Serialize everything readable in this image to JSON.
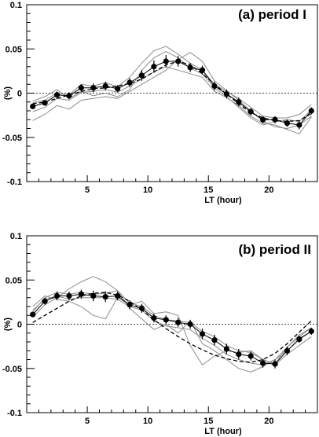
{
  "chart_data": [
    {
      "type": "line",
      "title": "(a) period I",
      "xlabel": "LT (hour)",
      "ylabel": "(%)",
      "xlim": [
        0,
        24
      ],
      "ylim": [
        -0.1,
        0.1
      ],
      "x_ticks": [
        "5",
        "10",
        "15",
        "20"
      ],
      "y_ticks": [
        "-0.1",
        "-0.05",
        "0",
        "0.05",
        "0.1"
      ],
      "reference_line": 0,
      "grid": false,
      "x": [
        0.5,
        1.5,
        2.5,
        3.5,
        4.5,
        5.5,
        6.5,
        7.5,
        8.5,
        9.5,
        10.5,
        11.5,
        12.5,
        13.5,
        14.5,
        15.5,
        16.5,
        17.5,
        18.5,
        19.5,
        20.5,
        21.5,
        22.5,
        23.5
      ],
      "mean": [
        -0.015,
        -0.011,
        -0.002,
        -0.003,
        0.006,
        0.006,
        0.008,
        0.005,
        0.012,
        0.02,
        0.03,
        0.036,
        0.036,
        0.029,
        0.026,
        0.008,
        -0.001,
        -0.01,
        -0.021,
        -0.03,
        -0.03,
        -0.034,
        -0.036,
        -0.02
      ],
      "error": [
        0.003,
        0.003,
        0.004,
        0.004,
        0.004,
        0.005,
        0.005,
        0.004,
        0.005,
        0.006,
        0.007,
        0.007,
        0.006,
        0.005,
        0.005,
        0.005,
        0.005,
        0.005,
        0.004,
        0.004,
        0.004,
        0.004,
        0.005,
        0.004
      ],
      "fit": [
        -0.012,
        -0.01,
        -0.006,
        -0.002,
        0.002,
        0.005,
        0.006,
        0.008,
        0.011,
        0.016,
        0.024,
        0.032,
        0.036,
        0.032,
        0.022,
        0.01,
        -0.001,
        -0.012,
        -0.022,
        -0.028,
        -0.031,
        -0.032,
        -0.031,
        -0.023
      ],
      "series": [
        {
          "values": [
            -0.011,
            -0.008,
            0.0,
            -0.002,
            0.01,
            0.008,
            0.012,
            0.007,
            0.018,
            0.034,
            0.048,
            0.053,
            0.044,
            0.034,
            0.026,
            0.01,
            0.002,
            -0.006,
            -0.016,
            -0.026,
            -0.028,
            -0.028,
            -0.024,
            -0.013
          ]
        },
        {
          "values": [
            -0.021,
            -0.016,
            -0.006,
            -0.008,
            0.001,
            0.002,
            0.004,
            0.001,
            0.008,
            0.016,
            0.024,
            0.03,
            0.026,
            0.022,
            0.018,
            0.002,
            -0.005,
            -0.014,
            -0.026,
            -0.034,
            -0.036,
            -0.041,
            -0.046,
            -0.027
          ]
        },
        {
          "values": [
            -0.009,
            -0.004,
            0.004,
            -0.006,
            0.002,
            -0.003,
            0.0,
            -0.004,
            0.004,
            0.026,
            0.04,
            0.047,
            0.04,
            0.028,
            0.022,
            0.006,
            -0.004,
            -0.016,
            -0.028,
            -0.036,
            -0.032,
            -0.03,
            -0.032,
            -0.019
          ]
        },
        {
          "values": [
            -0.031,
            -0.024,
            -0.014,
            -0.018,
            -0.008,
            -0.006,
            -0.004,
            -0.006,
            0.002,
            0.01,
            0.018,
            0.026,
            0.038,
            0.046,
            0.036,
            0.014,
            0.003,
            -0.008,
            -0.02,
            -0.032,
            -0.038,
            -0.04,
            -0.036,
            -0.026
          ]
        }
      ]
    },
    {
      "type": "line",
      "title": "(b) period II",
      "xlabel": "LT (hour)",
      "ylabel": "(%)",
      "xlim": [
        0,
        24
      ],
      "ylim": [
        -0.1,
        0.1
      ],
      "x_ticks": [
        "5",
        "10",
        "15",
        "20"
      ],
      "y_ticks": [
        "-0.1",
        "-0.05",
        "0",
        "0.05",
        "0.1"
      ],
      "reference_line": 0,
      "grid": false,
      "x": [
        0.5,
        1.5,
        2.5,
        3.5,
        4.5,
        5.5,
        6.5,
        7.5,
        8.5,
        9.5,
        10.5,
        11.5,
        12.5,
        13.5,
        14.5,
        15.5,
        16.5,
        17.5,
        18.5,
        19.5,
        20.5,
        21.5,
        22.5,
        23.5
      ],
      "mean": [
        0.011,
        0.026,
        0.032,
        0.032,
        0.034,
        0.032,
        0.031,
        0.032,
        0.022,
        0.018,
        0.007,
        0.005,
        0.002,
        0.0,
        -0.011,
        -0.018,
        -0.028,
        -0.034,
        -0.036,
        -0.044,
        -0.045,
        -0.03,
        -0.017,
        -0.008
      ],
      "error": [
        0.003,
        0.004,
        0.005,
        0.005,
        0.005,
        0.006,
        0.006,
        0.005,
        0.005,
        0.005,
        0.005,
        0.005,
        0.005,
        0.005,
        0.006,
        0.006,
        0.006,
        0.006,
        0.005,
        0.005,
        0.005,
        0.005,
        0.004,
        0.004
      ],
      "fit": [
        0.002,
        0.01,
        0.018,
        0.026,
        0.032,
        0.035,
        0.036,
        0.033,
        0.026,
        0.016,
        0.005,
        -0.005,
        -0.014,
        -0.022,
        -0.029,
        -0.035,
        -0.039,
        -0.042,
        -0.043,
        -0.04,
        -0.033,
        -0.022,
        -0.009,
        0.004
      ],
      "series": [
        {
          "values": [
            0.014,
            0.03,
            0.036,
            0.034,
            0.036,
            0.034,
            0.035,
            0.038,
            0.024,
            0.02,
            0.01,
            0.005,
            0.004,
            0.002,
            -0.008,
            -0.014,
            -0.024,
            -0.03,
            -0.032,
            -0.04,
            -0.045,
            -0.026,
            -0.014,
            -0.004
          ]
        },
        {
          "values": [
            0.008,
            0.022,
            0.03,
            0.04,
            0.048,
            0.054,
            0.048,
            0.038,
            0.018,
            0.006,
            -0.006,
            0.0,
            -0.01,
            0.004,
            -0.022,
            -0.03,
            -0.04,
            -0.05,
            -0.054,
            -0.048,
            -0.04,
            -0.03,
            -0.016,
            -0.008
          ]
        },
        {
          "values": [
            0.02,
            0.032,
            0.028,
            0.026,
            0.02,
            0.01,
            0.006,
            0.03,
            0.022,
            0.026,
            0.012,
            0.014,
            0.01,
            -0.024,
            -0.046,
            -0.036,
            -0.03,
            -0.032,
            -0.03,
            -0.04,
            -0.046,
            -0.034,
            -0.024,
            -0.014
          ]
        },
        {
          "values": [
            0.016,
            0.028,
            0.032,
            0.028,
            0.03,
            0.03,
            0.03,
            0.028,
            0.02,
            0.016,
            0.004,
            -0.002,
            -0.004,
            -0.006,
            -0.016,
            -0.024,
            -0.034,
            -0.04,
            -0.044,
            -0.046,
            -0.04,
            -0.026,
            -0.012,
            -0.004
          ]
        }
      ]
    }
  ]
}
